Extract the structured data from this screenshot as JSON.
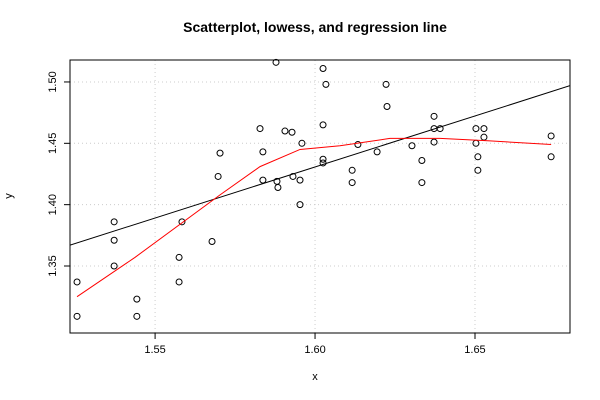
{
  "chart_data": {
    "type": "scatter",
    "title": "Scatterplot, lowess, and regression line",
    "xlabel": "x",
    "ylabel": "y",
    "x": [
      1.5256,
      1.5256,
      1.5372,
      1.5372,
      1.5372,
      1.5443,
      1.5443,
      1.5575,
      1.5575,
      1.5584,
      1.5678,
      1.5697,
      1.5703,
      1.5828,
      1.5837,
      1.5837,
      1.5878,
      1.5881,
      1.5884,
      1.5906,
      1.5928,
      1.5931,
      1.5953,
      1.5953,
      1.5959,
      1.6025,
      1.6025,
      1.6034,
      1.6025,
      1.6025,
      1.6116,
      1.6116,
      1.6134,
      1.6194,
      1.6222,
      1.6225,
      1.6303,
      1.6334,
      1.6334,
      1.6372,
      1.6372,
      1.6372,
      1.6391,
      1.6503,
      1.6503,
      1.6509,
      1.6509,
      1.6528,
      1.6528,
      1.6738,
      1.6738
    ],
    "y": [
      1.309,
      1.337,
      1.386,
      1.371,
      1.35,
      1.323,
      1.309,
      1.357,
      1.337,
      1.386,
      1.37,
      1.423,
      1.442,
      1.462,
      1.443,
      1.42,
      1.516,
      1.419,
      1.414,
      1.46,
      1.459,
      1.423,
      1.42,
      1.4,
      1.45,
      1.511,
      1.465,
      1.498,
      1.437,
      1.434,
      1.428,
      1.418,
      1.449,
      1.443,
      1.498,
      1.48,
      1.448,
      1.436,
      1.418,
      1.472,
      1.462,
      1.451,
      1.462,
      1.462,
      1.45,
      1.439,
      1.428,
      1.462,
      1.455,
      1.456,
      1.439
    ],
    "color": "#000000",
    "lowess": {
      "x": [
        1.5256,
        1.5437,
        1.5703,
        1.5828,
        1.5953,
        1.6078,
        1.6234,
        1.6391,
        1.6547,
        1.6738
      ],
      "y": [
        1.325,
        1.357,
        1.408,
        1.431,
        1.445,
        1.448,
        1.454,
        1.454,
        1.452,
        1.449
      ],
      "color": "#ff0000"
    },
    "regression": {
      "x": [
        1.5234,
        1.6797
      ],
      "y": [
        1.367,
        1.497
      ],
      "color": "#000000"
    },
    "xlim": [
      1.5234,
      1.6797
    ],
    "ylim": [
      1.2954,
      1.5179
    ],
    "xticks": [
      1.55,
      {
        "value": 1.6,
        "label": "1.60"
      },
      1.65
    ],
    "yticks": [
      1.35,
      {
        "value": 1.4,
        "label": "1.40"
      },
      1.45,
      {
        "value": 1.5,
        "label": "1.50"
      }
    ],
    "grid": true
  }
}
